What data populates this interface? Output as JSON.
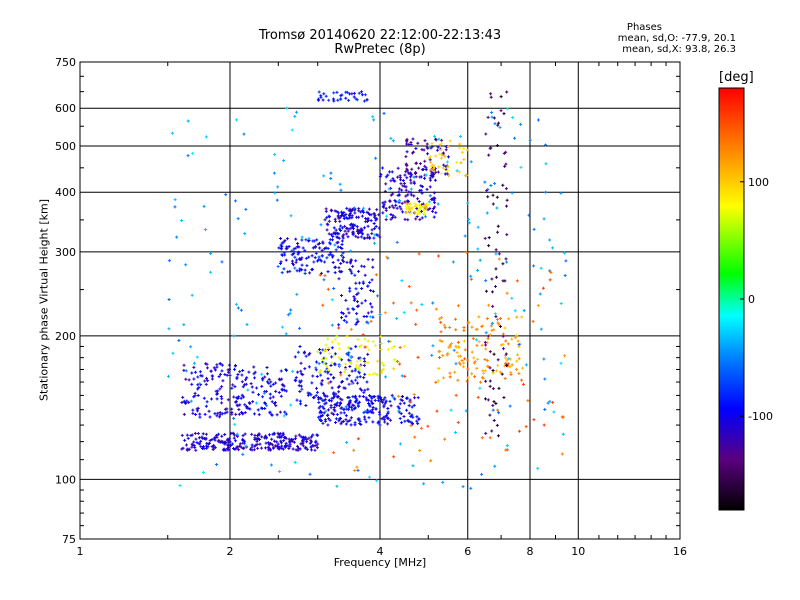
{
  "title_line1": "Tromsø 20140620 22:12:00-22:13:43",
  "title_line2": "RwPretec (8p)",
  "stats": {
    "heading": "Phases",
    "line_o": "mean, sd,O: -77.9, 20.1",
    "line_x": "mean, sd,X:  93.8, 26.3"
  },
  "colorbar": {
    "unit": "[deg]",
    "tick_labels": [
      "100",
      "0",
      "-100"
    ],
    "ticks": [
      100,
      0,
      -100
    ],
    "range": [
      -180,
      180
    ]
  },
  "chart_data": {
    "type": "scatter",
    "xlabel": "Frequency [MHz]",
    "ylabel": "Stationary phase Virtual Height [km]",
    "xscale": "log",
    "yscale": "log",
    "xlim": [
      1,
      16
    ],
    "ylim": [
      75,
      750
    ],
    "xtick_labels": [
      "1",
      "2",
      "4",
      "6",
      "8",
      "10",
      "16"
    ],
    "xticks": [
      1,
      2,
      4,
      6,
      8,
      10,
      16
    ],
    "ytick_labels": [
      "75",
      "100",
      "200",
      "300",
      "400",
      "500",
      "600",
      "750"
    ],
    "yticks": [
      75,
      100,
      200,
      300,
      400,
      500,
      600,
      750
    ],
    "grid": true,
    "groups": [
      {
        "x": [
          1.6,
          3.0
        ],
        "y": [
          115,
          125
        ],
        "phase": -110,
        "n": 260
      },
      {
        "x": [
          1.6,
          2.6
        ],
        "y": [
          135,
          175
        ],
        "phase": -105,
        "n": 210
      },
      {
        "x": [
          3.0,
          4.8
        ],
        "y": [
          130,
          150
        ],
        "phase": -100,
        "n": 210
      },
      {
        "x": [
          2.7,
          3.8
        ],
        "y": [
          140,
          190
        ],
        "phase": -95,
        "n": 150
      },
      {
        "x": [
          2.5,
          3.4
        ],
        "y": [
          270,
          320
        ],
        "phase": -95,
        "n": 130
      },
      {
        "x": [
          3.1,
          4.0
        ],
        "y": [
          320,
          370
        ],
        "phase": -105,
        "n": 160
      },
      {
        "x": [
          4.0,
          5.2
        ],
        "y": [
          350,
          450
        ],
        "phase": -110,
        "n": 140
      },
      {
        "x": [
          4.5,
          5.5
        ],
        "y": [
          430,
          520
        ],
        "phase": -120,
        "n": 70
      },
      {
        "x": [
          3.0,
          3.8
        ],
        "y": [
          620,
          650
        ],
        "phase": -90,
        "n": 35
      },
      {
        "x": [
          3.3,
          3.9
        ],
        "y": [
          210,
          290
        ],
        "phase": -100,
        "n": 70
      },
      {
        "x": [
          3.0,
          4.5
        ],
        "y": [
          165,
          200
        ],
        "phase": 80,
        "n": 70
      },
      {
        "x": [
          4.5,
          5.0
        ],
        "y": [
          360,
          380
        ],
        "phase": 90,
        "n": 40
      },
      {
        "x": [
          5.0,
          6.0
        ],
        "y": [
          430,
          520
        ],
        "phase": 100,
        "n": 40
      },
      {
        "x": [
          5.2,
          7.8
        ],
        "y": [
          160,
          220
        ],
        "phase": 120,
        "n": 120
      },
      {
        "x": [
          1.5,
          9.5
        ],
        "y": [
          95,
          600
        ],
        "phase": -40,
        "n": 240
      },
      {
        "x": [
          3.0,
          9.5
        ],
        "y": [
          100,
          300
        ],
        "phase": 140,
        "n": 90
      },
      {
        "x": [
          6.5,
          7.2
        ],
        "y": [
          120,
          650
        ],
        "phase": -150,
        "n": 80
      }
    ]
  }
}
